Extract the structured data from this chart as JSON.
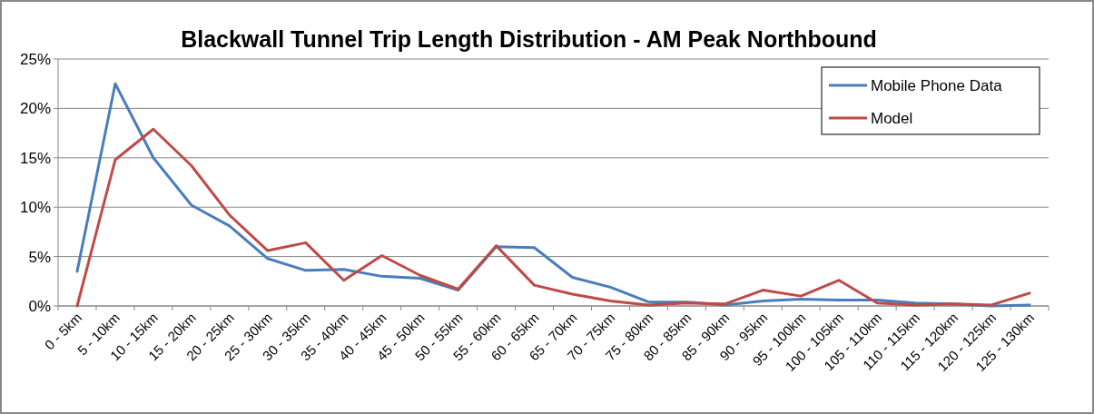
{
  "chart_data": {
    "type": "line",
    "title": "Blackwall Tunnel Trip Length Distribution - AM Peak Northbound",
    "categories": [
      "0 - 5km",
      "5 - 10km",
      "10 - 15km",
      "15 - 20km",
      "20 - 25km",
      "25 - 30km",
      "30 - 35km",
      "35 - 40km",
      "40 - 45km",
      "45 - 50km",
      "50 - 55km",
      "55 - 60km",
      "60 - 65km",
      "65 - 70km",
      "70 - 75km",
      "75 - 80km",
      "80 - 85km",
      "85 - 90km",
      "90 - 95km",
      "95 - 100km",
      "100 - 105km",
      "105 - 110km",
      "110 - 115km",
      "115 - 120km",
      "120 - 125km",
      "125 - 130km"
    ],
    "series": [
      {
        "name": "Mobile Phone Data",
        "color": "#4a7ebb",
        "values": [
          3.5,
          22.5,
          15,
          10.2,
          8.1,
          4.8,
          3.6,
          3.7,
          3.0,
          2.8,
          1.6,
          6.0,
          5.9,
          2.9,
          1.9,
          0.4,
          0.4,
          0.1,
          0.5,
          0.7,
          0.6,
          0.6,
          0.3,
          0.2,
          0.0,
          0.1
        ]
      },
      {
        "name": "Model",
        "color": "#be4b48",
        "values": [
          0,
          14.8,
          17.9,
          14.2,
          9.2,
          5.6,
          6.4,
          2.6,
          5.1,
          3.1,
          1.7,
          6.1,
          2.1,
          1.2,
          0.5,
          0.1,
          0.3,
          0.2,
          1.6,
          1.0,
          2.6,
          0.3,
          0.1,
          0.2,
          0.1,
          1.3
        ]
      }
    ],
    "ylim": [
      0,
      25
    ],
    "yticks": [
      {
        "value": 0,
        "label": "0%"
      },
      {
        "value": 5,
        "label": "5%"
      },
      {
        "value": 10,
        "label": "10%"
      },
      {
        "value": 15,
        "label": "15%"
      },
      {
        "value": 20,
        "label": "20%"
      },
      {
        "value": 25,
        "label": "25%"
      }
    ],
    "grid": "y",
    "legend": "top right",
    "marker": "none",
    "line_style": "solid"
  }
}
